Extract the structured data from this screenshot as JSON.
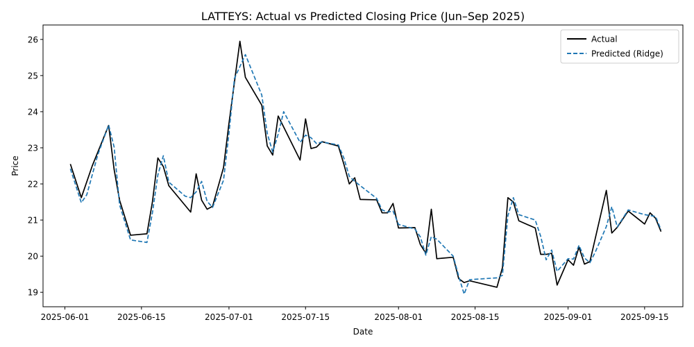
{
  "chart_data": {
    "type": "line",
    "title": "LATTEYS: Actual vs Predicted Closing Price (Jun–Sep 2025)",
    "xlabel": "Date",
    "ylabel": "Price",
    "x_axis": "date",
    "xlim": [
      "2025-05-28",
      "2025-09-22"
    ],
    "ylim": [
      18.6,
      26.4
    ],
    "x_ticks": [
      "2025-06-01",
      "2025-06-15",
      "2025-07-01",
      "2025-07-15",
      "2025-08-01",
      "2025-08-15",
      "2025-09-01",
      "2025-09-15"
    ],
    "y_ticks": [
      19,
      20,
      21,
      22,
      23,
      24,
      25,
      26
    ],
    "grid": false,
    "legend": "top-right",
    "series": [
      {
        "name": "Actual",
        "color": "#000000",
        "style": "solid",
        "points": [
          [
            "2025-06-02",
            22.55
          ],
          [
            "2025-06-04",
            21.62
          ],
          [
            "2025-06-06",
            22.5
          ],
          [
            "2025-06-09",
            23.62
          ],
          [
            "2025-06-10",
            22.4
          ],
          [
            "2025-06-11",
            21.55
          ],
          [
            "2025-06-13",
            20.58
          ],
          [
            "2025-06-16",
            20.62
          ],
          [
            "2025-06-17",
            21.5
          ],
          [
            "2025-06-18",
            22.72
          ],
          [
            "2025-06-19",
            22.48
          ],
          [
            "2025-06-20",
            21.95
          ],
          [
            "2025-06-24",
            21.22
          ],
          [
            "2025-06-25",
            22.28
          ],
          [
            "2025-06-26",
            21.55
          ],
          [
            "2025-06-27",
            21.3
          ],
          [
            "2025-06-28",
            21.38
          ],
          [
            "2025-06-30",
            22.45
          ],
          [
            "2025-07-01",
            23.68
          ],
          [
            "2025-07-03",
            25.95
          ],
          [
            "2025-07-04",
            24.95
          ],
          [
            "2025-07-07",
            24.18
          ],
          [
            "2025-07-08",
            23.05
          ],
          [
            "2025-07-09",
            22.8
          ],
          [
            "2025-07-10",
            23.88
          ],
          [
            "2025-07-14",
            22.66
          ],
          [
            "2025-07-15",
            23.8
          ],
          [
            "2025-07-16",
            22.98
          ],
          [
            "2025-07-17",
            23.02
          ],
          [
            "2025-07-18",
            23.17
          ],
          [
            "2025-07-21",
            23.05
          ],
          [
            "2025-07-22",
            22.55
          ],
          [
            "2025-07-23",
            22.0
          ],
          [
            "2025-07-24",
            22.17
          ],
          [
            "2025-07-25",
            21.57
          ],
          [
            "2025-07-28",
            21.56
          ],
          [
            "2025-07-29",
            21.2
          ],
          [
            "2025-07-30",
            21.2
          ],
          [
            "2025-07-31",
            21.46
          ],
          [
            "2025-08-01",
            20.78
          ],
          [
            "2025-08-04",
            20.79
          ],
          [
            "2025-08-05",
            20.32
          ],
          [
            "2025-08-06",
            20.08
          ],
          [
            "2025-08-07",
            21.3
          ],
          [
            "2025-08-08",
            19.93
          ],
          [
            "2025-08-11",
            19.97
          ],
          [
            "2025-08-12",
            19.38
          ],
          [
            "2025-08-13",
            19.27
          ],
          [
            "2025-08-14",
            19.32
          ],
          [
            "2025-08-19",
            19.14
          ],
          [
            "2025-08-20",
            19.68
          ],
          [
            "2025-08-21",
            21.62
          ],
          [
            "2025-08-22",
            21.5
          ],
          [
            "2025-08-23",
            20.98
          ],
          [
            "2025-08-26",
            20.78
          ],
          [
            "2025-08-27",
            20.05
          ],
          [
            "2025-08-28",
            20.05
          ],
          [
            "2025-08-29",
            20.08
          ],
          [
            "2025-08-30",
            19.2
          ],
          [
            "2025-09-01",
            19.9
          ],
          [
            "2025-09-02",
            19.75
          ],
          [
            "2025-09-03",
            20.25
          ],
          [
            "2025-09-04",
            19.78
          ],
          [
            "2025-09-05",
            19.85
          ],
          [
            "2025-09-08",
            21.82
          ],
          [
            "2025-09-09",
            20.64
          ],
          [
            "2025-09-10",
            20.8
          ],
          [
            "2025-09-12",
            21.25
          ],
          [
            "2025-09-15",
            20.89
          ],
          [
            "2025-09-16",
            21.2
          ],
          [
            "2025-09-17",
            21.05
          ],
          [
            "2025-09-18",
            20.68
          ]
        ]
      },
      {
        "name": "Predicted (Ridge)",
        "color": "#1f77b4",
        "style": "dashed",
        "points": [
          [
            "2025-06-02",
            22.42
          ],
          [
            "2025-06-04",
            21.48
          ],
          [
            "2025-06-05",
            21.7
          ],
          [
            "2025-06-07",
            22.8
          ],
          [
            "2025-06-09",
            23.63
          ],
          [
            "2025-06-10",
            23.02
          ],
          [
            "2025-06-11",
            21.42
          ],
          [
            "2025-06-13",
            20.45
          ],
          [
            "2025-06-16",
            20.38
          ],
          [
            "2025-06-17",
            21.2
          ],
          [
            "2025-06-18",
            22.25
          ],
          [
            "2025-06-19",
            22.78
          ],
          [
            "2025-06-20",
            22.05
          ],
          [
            "2025-06-23",
            21.66
          ],
          [
            "2025-06-24",
            21.62
          ],
          [
            "2025-06-25",
            21.78
          ],
          [
            "2025-06-26",
            22.07
          ],
          [
            "2025-06-27",
            21.52
          ],
          [
            "2025-06-28",
            21.35
          ],
          [
            "2025-06-30",
            22.1
          ],
          [
            "2025-07-01",
            23.4
          ],
          [
            "2025-07-02",
            24.92
          ],
          [
            "2025-07-04",
            25.58
          ],
          [
            "2025-07-07",
            24.46
          ],
          [
            "2025-07-08",
            23.4
          ],
          [
            "2025-07-09",
            22.88
          ],
          [
            "2025-07-10",
            23.38
          ],
          [
            "2025-07-11",
            24.0
          ],
          [
            "2025-07-14",
            23.15
          ],
          [
            "2025-07-15",
            23.35
          ],
          [
            "2025-07-16",
            23.28
          ],
          [
            "2025-07-17",
            23.12
          ],
          [
            "2025-07-18",
            23.16
          ],
          [
            "2025-07-21",
            23.08
          ],
          [
            "2025-07-22",
            22.72
          ],
          [
            "2025-07-23",
            22.21
          ],
          [
            "2025-07-24",
            22.07
          ],
          [
            "2025-07-28",
            21.6
          ],
          [
            "2025-07-29",
            21.28
          ],
          [
            "2025-07-30",
            21.22
          ],
          [
            "2025-07-31",
            21.25
          ],
          [
            "2025-08-01",
            20.88
          ],
          [
            "2025-08-04",
            20.75
          ],
          [
            "2025-08-05",
            20.53
          ],
          [
            "2025-08-06",
            20.03
          ],
          [
            "2025-08-07",
            20.54
          ],
          [
            "2025-08-08",
            20.47
          ],
          [
            "2025-08-11",
            20.0
          ],
          [
            "2025-08-12",
            19.45
          ],
          [
            "2025-08-13",
            18.95
          ],
          [
            "2025-08-14",
            19.35
          ],
          [
            "2025-08-19",
            19.4
          ],
          [
            "2025-08-20",
            19.47
          ],
          [
            "2025-08-21",
            21.12
          ],
          [
            "2025-08-22",
            21.62
          ],
          [
            "2025-08-23",
            21.15
          ],
          [
            "2025-08-26",
            21.0
          ],
          [
            "2025-08-27",
            20.55
          ],
          [
            "2025-08-28",
            19.9
          ],
          [
            "2025-08-29",
            20.17
          ],
          [
            "2025-08-30",
            19.58
          ],
          [
            "2025-09-01",
            19.93
          ],
          [
            "2025-09-02",
            19.92
          ],
          [
            "2025-09-03",
            20.3
          ],
          [
            "2025-09-04",
            19.95
          ],
          [
            "2025-09-05",
            19.82
          ],
          [
            "2025-09-06",
            20.12
          ],
          [
            "2025-09-08",
            20.82
          ],
          [
            "2025-09-09",
            21.37
          ],
          [
            "2025-09-10",
            20.81
          ],
          [
            "2025-09-12",
            21.28
          ],
          [
            "2025-09-15",
            21.15
          ],
          [
            "2025-09-17",
            21.1
          ],
          [
            "2025-09-18",
            20.73
          ]
        ]
      }
    ]
  }
}
